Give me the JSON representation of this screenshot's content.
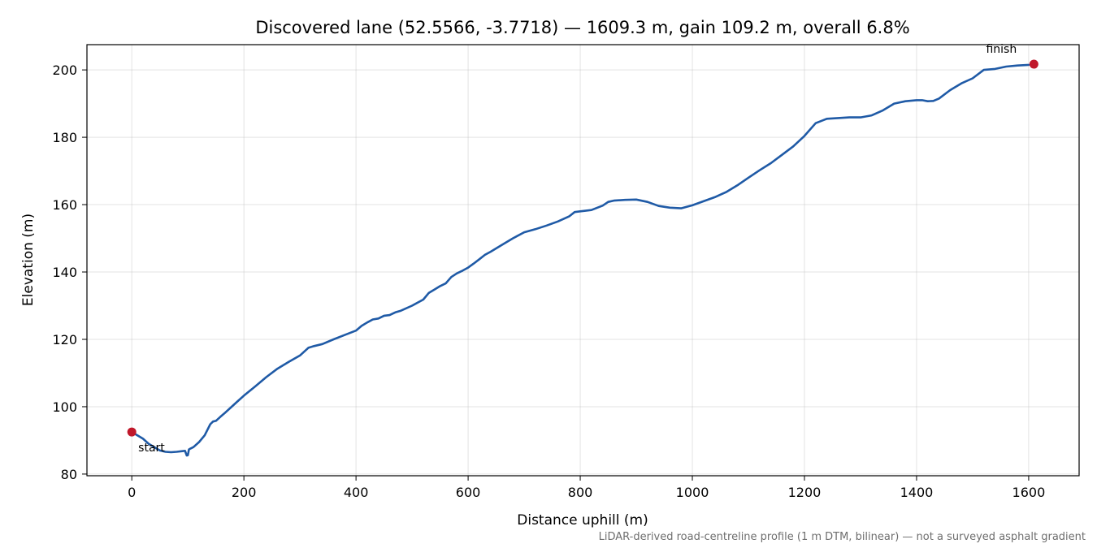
{
  "chart_data": {
    "type": "line",
    "title": "Discovered lane (52.5566, -3.7718) — 1609.3 m, gain 109.2 m, overall 6.8%",
    "xlabel": "Distance uphill (m)",
    "ylabel": "Elevation (m)",
    "xlim": [
      -80,
      1690
    ],
    "ylim": [
      79.5,
      207.5
    ],
    "xticks": [
      0,
      200,
      400,
      600,
      800,
      1000,
      1200,
      1400,
      1600
    ],
    "yticks": [
      80,
      100,
      120,
      140,
      160,
      180,
      200
    ],
    "grid": true,
    "footnote": "LiDAR-derived road-centreline profile (1 m DTM, bilinear) — not a surveyed asphalt gradient",
    "colors": {
      "line": "#1f5aa6",
      "markers": "#c0172a"
    },
    "series": [
      {
        "x": [
          0,
          10,
          20,
          30,
          40,
          50,
          60,
          70,
          80,
          90,
          95,
          98,
          100,
          102,
          105,
          110,
          120,
          130,
          140,
          145,
          150,
          158,
          165,
          175,
          190,
          200,
          220,
          240,
          260,
          280,
          300,
          315,
          325,
          340,
          360,
          380,
          400,
          410,
          420,
          430,
          440,
          450,
          460,
          470,
          480,
          500,
          520,
          530,
          540,
          550,
          560,
          570,
          580,
          590,
          600,
          610,
          620,
          630,
          640,
          660,
          680,
          700,
          720,
          740,
          760,
          780,
          790,
          800,
          820,
          840,
          850,
          860,
          880,
          900,
          920,
          940,
          960,
          980,
          1000,
          1020,
          1040,
          1060,
          1080,
          1100,
          1120,
          1140,
          1160,
          1180,
          1200,
          1220,
          1240,
          1260,
          1280,
          1300,
          1320,
          1340,
          1360,
          1380,
          1400,
          1410,
          1420,
          1430,
          1440,
          1460,
          1480,
          1500,
          1520,
          1540,
          1560,
          1580,
          1600
        ],
        "y": [
          92.5,
          91.5,
          90.5,
          89.0,
          88.0,
          87.0,
          86.6,
          86.5,
          86.6,
          86.8,
          86.9,
          85.5,
          85.6,
          87.3,
          87.6,
          88.0,
          89.5,
          91.5,
          94.8,
          95.6,
          95.8,
          97.0,
          98.0,
          99.5,
          101.8,
          103.3,
          106.0,
          108.8,
          111.3,
          113.3,
          115.2,
          117.5,
          118.0,
          118.6,
          120.0,
          121.3,
          122.6,
          124.0,
          125.0,
          125.9,
          126.2,
          127.0,
          127.2,
          128.0,
          128.5,
          130.0,
          131.8,
          133.8,
          134.8,
          135.8,
          136.6,
          138.5,
          139.6,
          140.4,
          141.3,
          142.5,
          143.8,
          145.1,
          146.0,
          148.0,
          150.0,
          151.8,
          152.7,
          153.8,
          155.0,
          156.5,
          157.8,
          158.0,
          158.4,
          159.7,
          160.8,
          161.2,
          161.4,
          161.5,
          160.8,
          159.6,
          159.1,
          158.9,
          159.8,
          161.0,
          162.2,
          163.7,
          165.7,
          168.0,
          170.2,
          172.3,
          174.8,
          177.3,
          180.4,
          184.2,
          185.5,
          185.7,
          185.9,
          185.9,
          186.5,
          188.0,
          190.0,
          190.7,
          191.0,
          191.0,
          190.7,
          190.8,
          191.5,
          194.0,
          196.0,
          197.5,
          200.0,
          200.3,
          201.0,
          201.3,
          201.5
        ]
      }
    ],
    "markers": [
      {
        "x": 0,
        "y": 92.5,
        "label": "start"
      },
      {
        "x": 1609.3,
        "y": 201.7,
        "label": "finish"
      }
    ]
  }
}
